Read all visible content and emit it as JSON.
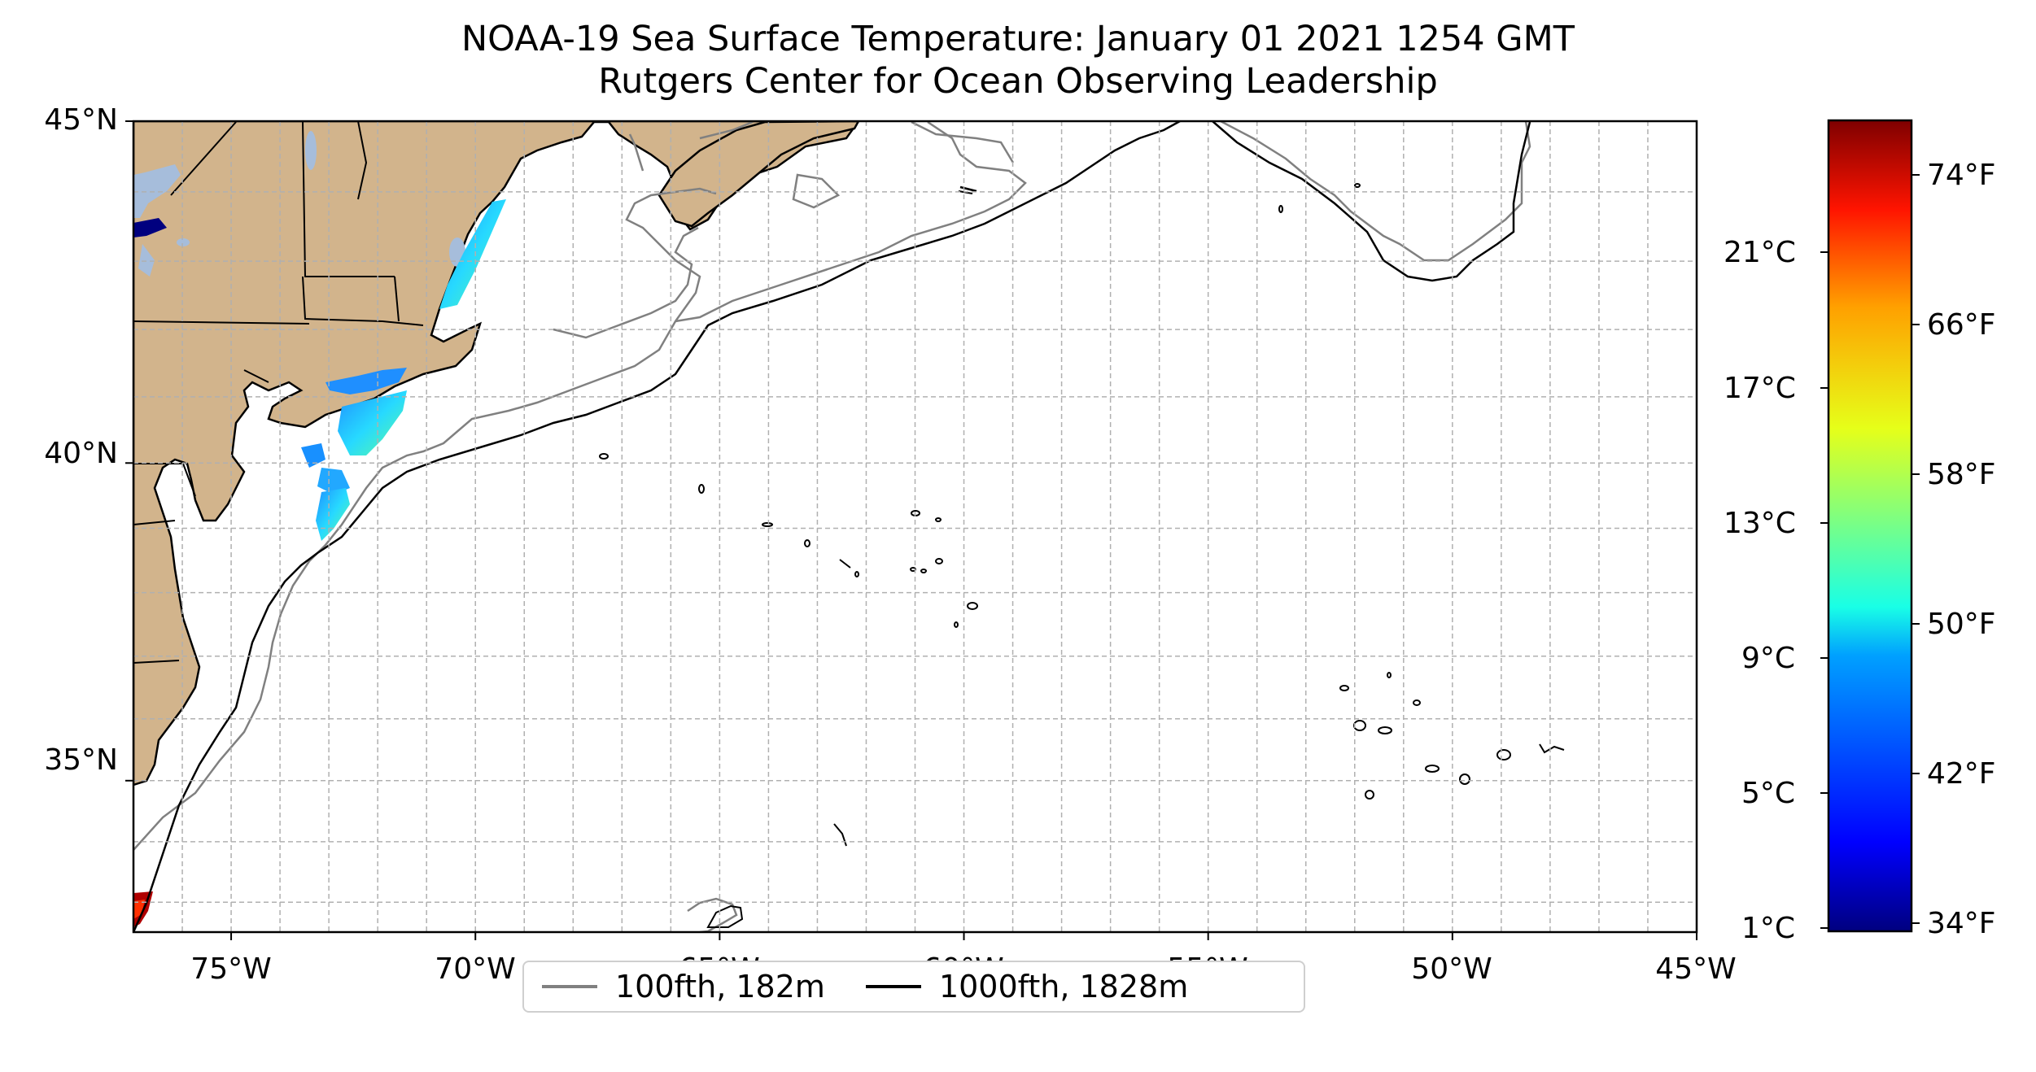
{
  "title": {
    "line1": "NOAA-19 Sea Surface Temperature: January 01 2021 1254 GMT",
    "line2": "Rutgers Center for Ocean Observing Leadership"
  },
  "map": {
    "lat_labels": [
      "45°N",
      "40°N",
      "35°N"
    ],
    "lon_labels": [
      "75°W",
      "70°W",
      "65°W",
      "60°W",
      "55°W",
      "50°W",
      "45°W"
    ],
    "lat_range": [
      32.5,
      45
    ],
    "lon_range": [
      -77,
      -45
    ],
    "land_color": "#d2b48c",
    "gridlines": true
  },
  "colorbar": {
    "celsius_labels": [
      "21°C",
      "17°C",
      "13°C",
      "9°C",
      "5°C",
      "1°C"
    ],
    "fahrenheit_labels": [
      "74°F",
      "66°F",
      "58°F",
      "50°F",
      "42°F",
      "34°F"
    ],
    "colormap": "jet"
  },
  "legend": {
    "items": [
      {
        "label": "100fth, 182m",
        "color": "#808080"
      },
      {
        "label": "1000fth, 1828m",
        "color": "#000000"
      }
    ]
  }
}
